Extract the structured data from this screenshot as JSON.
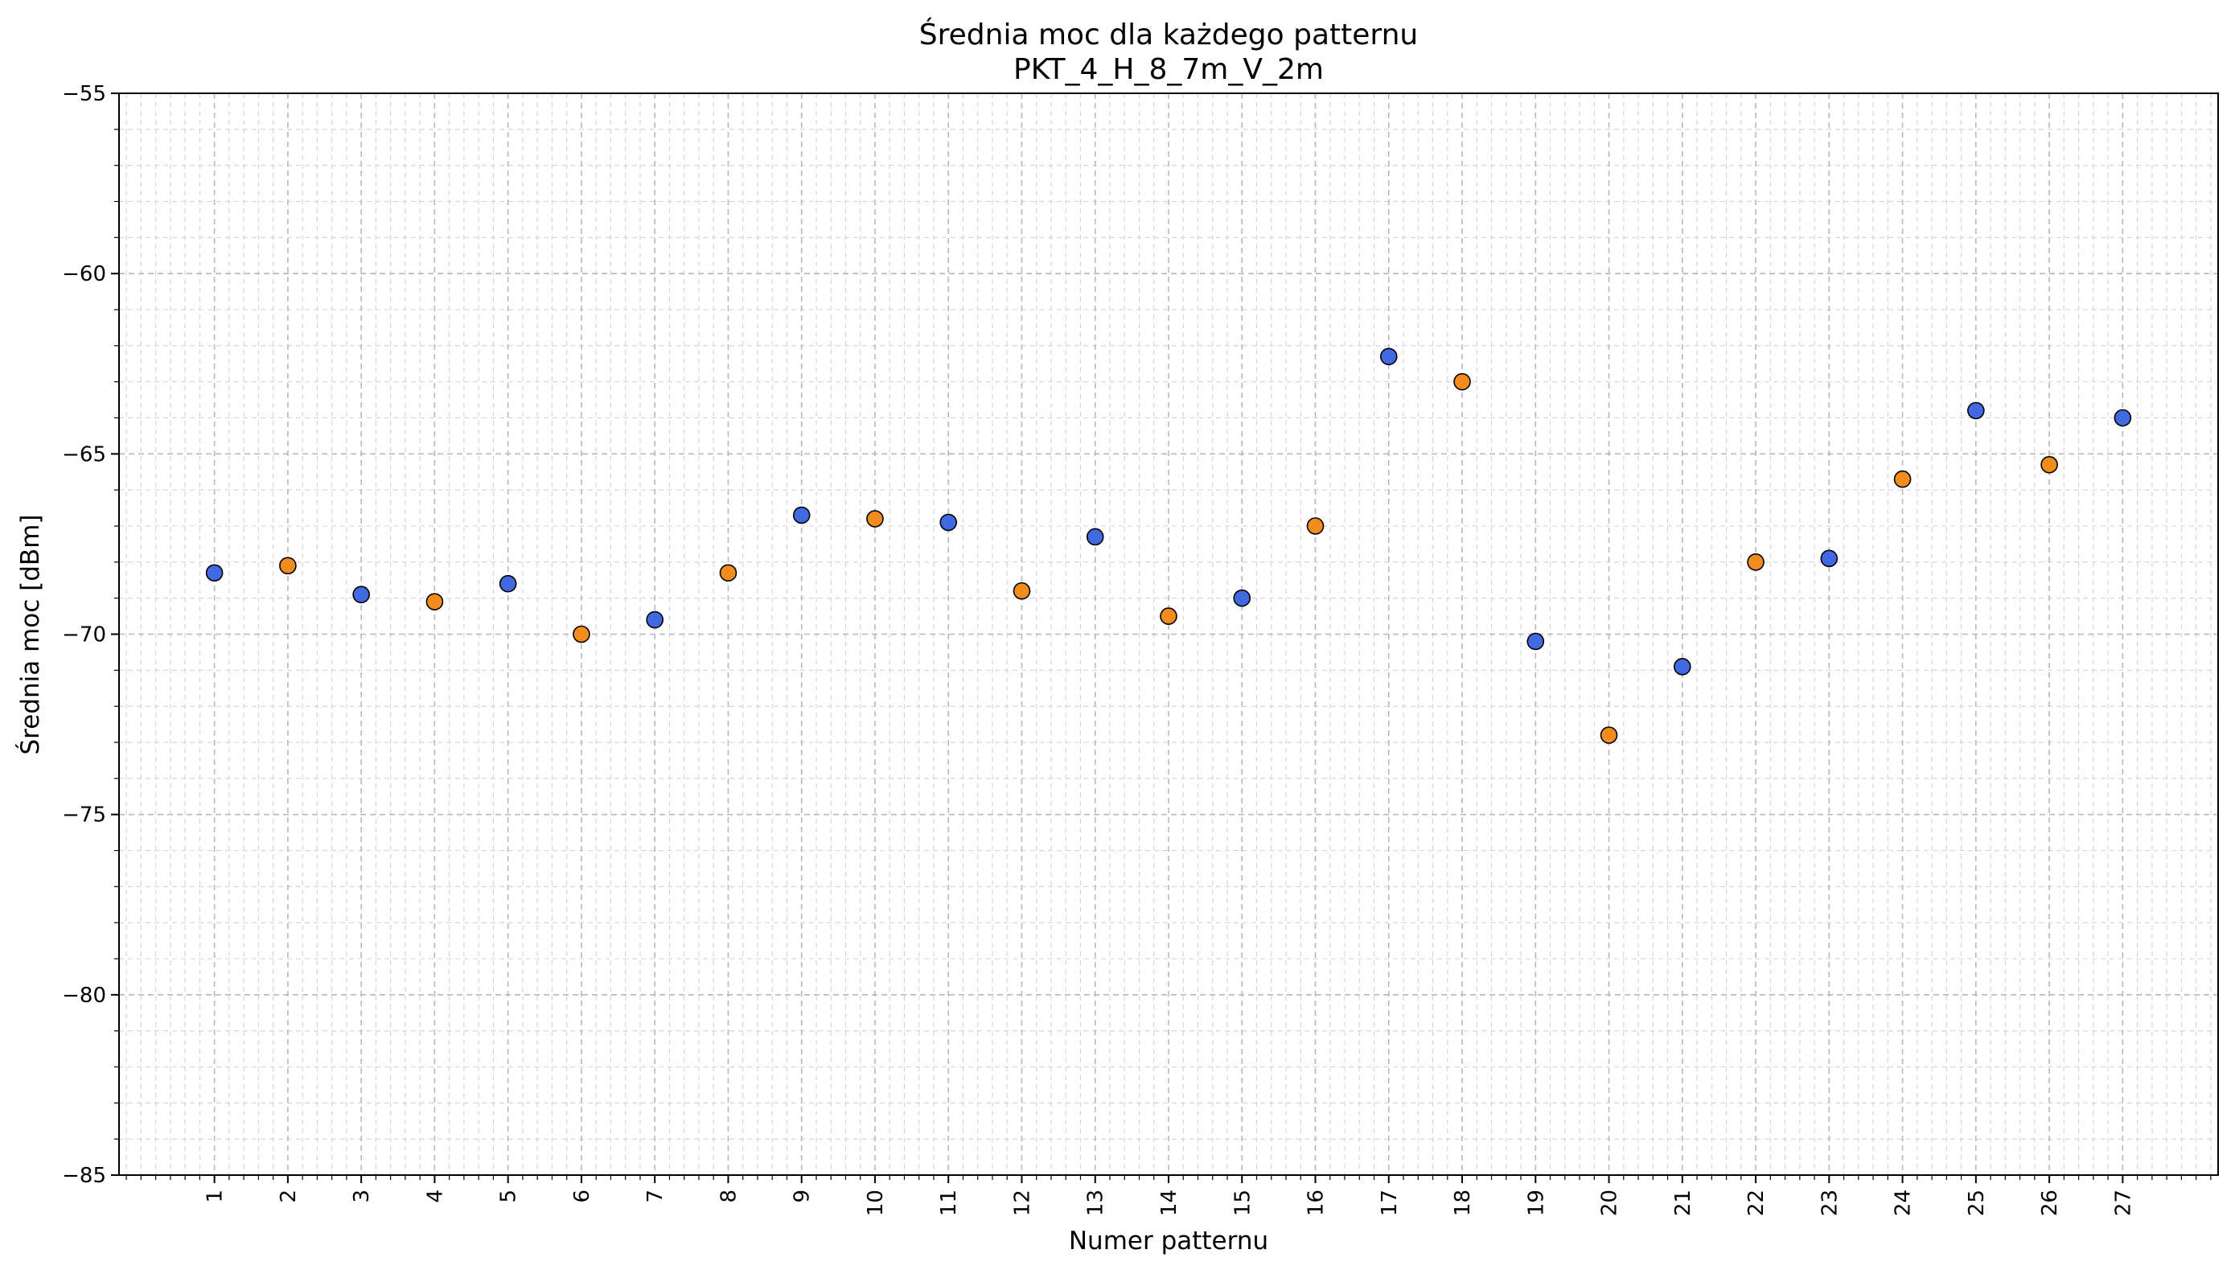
{
  "chart_data": {
    "type": "scatter",
    "title": "Średnia moc dla każdego patternu",
    "subtitle": "PKT_4_H_8_7m_V_2m",
    "xlabel": "Numer patternu",
    "ylabel": "Średnia moc [dBm]",
    "ylim": [
      -85,
      -55
    ],
    "xlim": [
      -0.3,
      28.3
    ],
    "grid": true,
    "x_ticks": [
      "1",
      "2",
      "3",
      "4",
      "5",
      "6",
      "7",
      "8",
      "9",
      "10",
      "11",
      "12",
      "13",
      "14",
      "15",
      "16",
      "17",
      "18",
      "19",
      "20",
      "21",
      "22",
      "23",
      "24",
      "25",
      "26",
      "27"
    ],
    "y_ticks": [
      "−55",
      "−60",
      "−65",
      "−70",
      "−75",
      "−80",
      "−85"
    ],
    "colors": {
      "odd": "#4169e1",
      "even": "#f28c1c"
    },
    "points": [
      {
        "x": 1,
        "y": -68.3
      },
      {
        "x": 2,
        "y": -68.1
      },
      {
        "x": 3,
        "y": -68.9
      },
      {
        "x": 4,
        "y": -69.1
      },
      {
        "x": 5,
        "y": -68.6
      },
      {
        "x": 6,
        "y": -70.0
      },
      {
        "x": 7,
        "y": -69.6
      },
      {
        "x": 8,
        "y": -68.3
      },
      {
        "x": 9,
        "y": -66.7
      },
      {
        "x": 10,
        "y": -66.8
      },
      {
        "x": 11,
        "y": -66.9
      },
      {
        "x": 12,
        "y": -68.8
      },
      {
        "x": 13,
        "y": -67.3
      },
      {
        "x": 14,
        "y": -69.5
      },
      {
        "x": 15,
        "y": -69.0
      },
      {
        "x": 16,
        "y": -67.0
      },
      {
        "x": 17,
        "y": -62.3
      },
      {
        "x": 18,
        "y": -63.0
      },
      {
        "x": 19,
        "y": -70.2
      },
      {
        "x": 20,
        "y": -72.8
      },
      {
        "x": 21,
        "y": -70.9
      },
      {
        "x": 22,
        "y": -68.0
      },
      {
        "x": 23,
        "y": -67.9
      },
      {
        "x": 24,
        "y": -65.7
      },
      {
        "x": 25,
        "y": -63.8
      },
      {
        "x": 26,
        "y": -65.3
      },
      {
        "x": 27,
        "y": -64.0
      }
    ]
  }
}
